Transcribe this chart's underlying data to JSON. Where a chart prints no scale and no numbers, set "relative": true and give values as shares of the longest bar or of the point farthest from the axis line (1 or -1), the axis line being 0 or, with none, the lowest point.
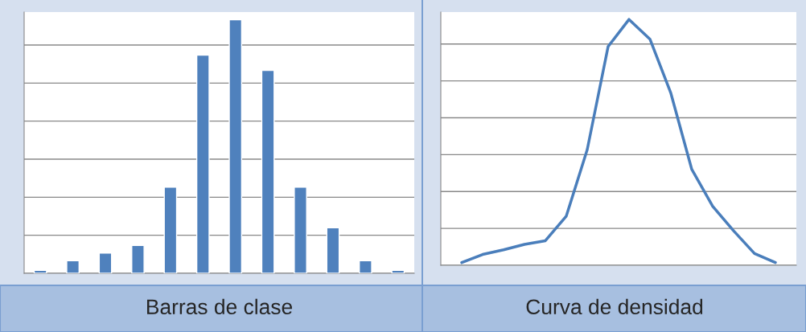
{
  "chart_data": [
    {
      "type": "bar",
      "xlabel": "Barras de clase",
      "relative": true,
      "grid": "y",
      "color": "#4f81bd",
      "categories": [
        null,
        null,
        null,
        null,
        null,
        null,
        null,
        null,
        null,
        null,
        null,
        null
      ],
      "values": [
        0.012,
        0.05,
        0.08,
        0.11,
        0.34,
        0.86,
        1,
        0.8,
        0.34,
        0.18,
        0.05,
        0.012
      ]
    },
    {
      "type": "line",
      "xlabel": "Curva de densidad",
      "relative": true,
      "grid": "y",
      "color": "#4a7ebb",
      "marker": "none",
      "categories": [
        null,
        null,
        null,
        null,
        null,
        null,
        null,
        null,
        null,
        null,
        null,
        null,
        null,
        null,
        null,
        null
      ],
      "values": [
        0.011,
        0.044,
        0.063,
        0.085,
        0.1,
        0.2,
        0.47,
        0.89,
        1,
        0.92,
        0.7,
        0.39,
        0.24,
        0.14,
        0.048,
        0.011
      ]
    }
  ]
}
